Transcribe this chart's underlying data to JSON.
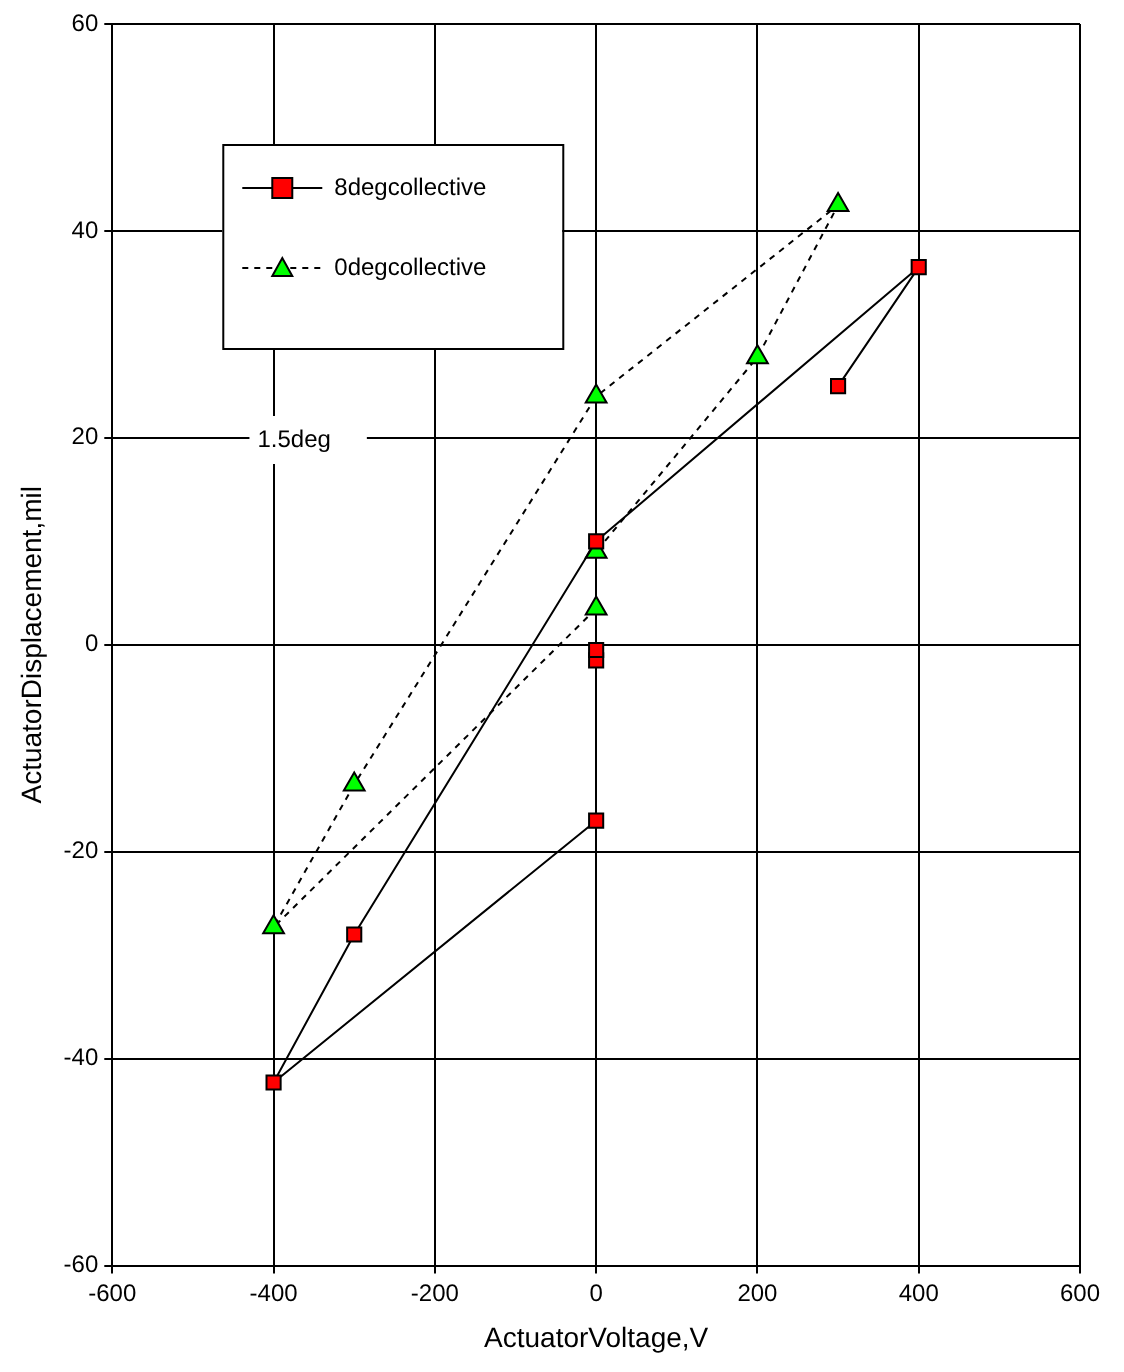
{
  "chart_data": {
    "type": "line",
    "xlabel": "ActuatorVoltage,V",
    "ylabel": "ActuatorDisplacement,mil",
    "xlim": [
      -600,
      600
    ],
    "xticks": [
      -600,
      -400,
      -200,
      0,
      200,
      400,
      600
    ],
    "ylim": [
      -60,
      60
    ],
    "yticks": [
      -60,
      -40,
      -20,
      0,
      20,
      40,
      60
    ],
    "grid": true,
    "legend": "top left",
    "annotations": [
      "1.5deg"
    ],
    "series": [
      {
        "name": "8degcollective",
        "color": "#ff0000",
        "marker": "square",
        "line_style": "solid",
        "x": [
          300,
          400,
          0,
          -300,
          -400,
          0,
          null,
          0,
          null,
          0
        ],
        "values": [
          25,
          36.5,
          10,
          -28,
          -42.3,
          -17,
          null,
          -1.5,
          null,
          -0.5
        ]
      },
      {
        "name": "0degcollective",
        "color": "#00ff00",
        "marker": "triangle",
        "line_style": "dotted",
        "x": [
          0,
          -400,
          -300,
          0,
          300,
          200,
          0
        ],
        "values": [
          3.5,
          -27.3,
          -13.5,
          24,
          42.5,
          27.8,
          9
        ]
      }
    ]
  }
}
